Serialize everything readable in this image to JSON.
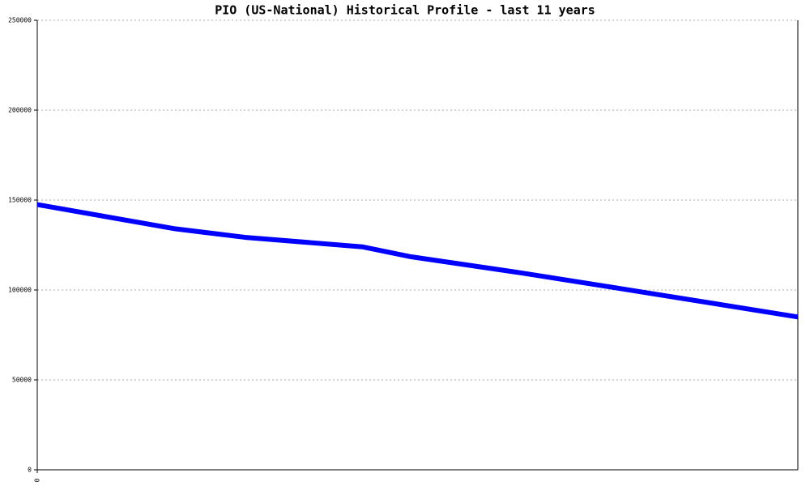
{
  "chart_data": {
    "type": "line",
    "title": "PIO (US-National) Historical Profile - last 11 years",
    "x": [
      0,
      2,
      3,
      4.7,
      5.4,
      7,
      8.4,
      11
    ],
    "series": [
      {
        "color": "#0000ff",
        "values": [
          147500,
          134000,
          129300,
          124000,
          118500,
          109500,
          101000,
          85000
        ]
      }
    ],
    "xlim": [
      0,
      11
    ],
    "xticks": [
      0
    ],
    "ylim": [
      0,
      250000
    ],
    "yticks": [
      0,
      50000,
      100000,
      150000,
      200000,
      250000
    ],
    "grid": true
  }
}
